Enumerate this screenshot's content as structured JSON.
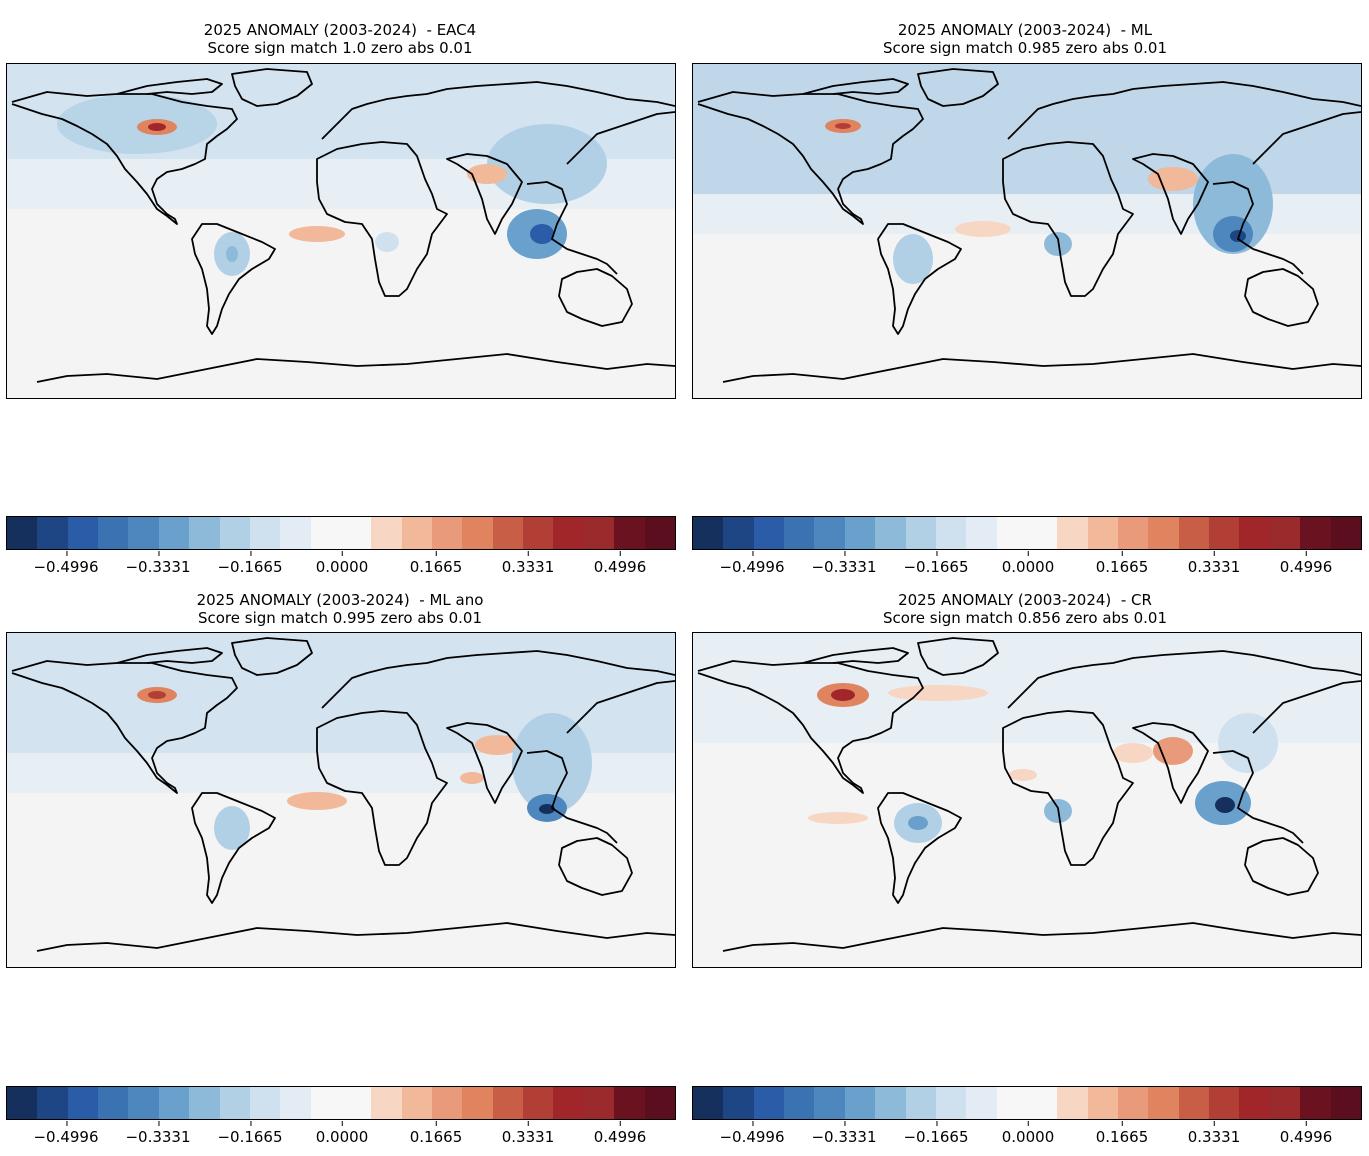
{
  "panels": [
    {
      "title_line1": "2025 ANOMALY (2003-2024)  - EAC4",
      "title_line2": "Score sign match 1.0 zero abs 0.01"
    },
    {
      "title_line1": "2025 ANOMALY (2003-2024)  - ML",
      "title_line2": "Score sign match 0.985 zero abs 0.01"
    },
    {
      "title_line1": "2025 ANOMALY (2003-2024)  - ML ano",
      "title_line2": "Score sign match 0.995 zero abs 0.01"
    },
    {
      "title_line1": "2025 ANOMALY (2003-2024)  - CR",
      "title_line2": "Score sign match 0.856 zero abs 0.01"
    }
  ],
  "colorbar": {
    "ticks": [
      "−0.4996",
      "−0.3331",
      "−0.1665",
      "0.0000",
      "0.1665",
      "0.3331",
      "0.4996"
    ],
    "colors": [
      "#15305c",
      "#1e4684",
      "#2b5ca7",
      "#3b72b2",
      "#4e87be",
      "#6aa1cc",
      "#8ebad9",
      "#b2d0e5",
      "#cfe1ef",
      "#e3ecf4",
      "#f7f7f7",
      "#f7f7f7",
      "#f7d6c3",
      "#f2b89a",
      "#e89a7a",
      "#e0835f",
      "#c85e46",
      "#b23f36",
      "#a0262a",
      "#9a2a2b",
      "#6b1220",
      "#5b0f1e"
    ]
  }
}
